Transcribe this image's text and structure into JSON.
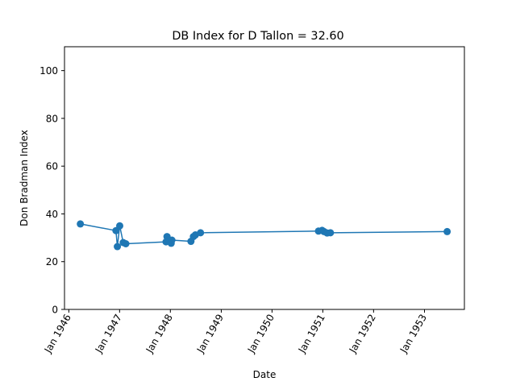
{
  "chart_data": {
    "type": "line",
    "title": "DB Index for D Tallon = 32.60",
    "xlabel": "Date",
    "ylabel": "Don Bradman Index",
    "xlim": [
      "1945-12-01",
      "1953-10-15"
    ],
    "ylim": [
      0,
      110
    ],
    "x_ticks": [
      "1946-01-01",
      "1947-01-01",
      "1948-01-01",
      "1949-01-01",
      "1950-01-01",
      "1951-01-01",
      "1952-01-01",
      "1953-01-01"
    ],
    "x_tick_labels": [
      "Jan 1946",
      "Jan 1947",
      "Jan 1948",
      "Jan 1949",
      "Jan 1950",
      "Jan 1951",
      "Jan 1952",
      "Jan 1953"
    ],
    "y_ticks": [
      0,
      20,
      40,
      60,
      80,
      100
    ],
    "y_tick_labels": [
      "0",
      "20",
      "40",
      "60",
      "80",
      "100"
    ],
    "grid": false,
    "legend": "none",
    "series_color": "#1f77b4",
    "series": [
      {
        "x": [
          "1946-03-25",
          "1946-12-06",
          "1946-12-16",
          "1947-01-02",
          "1947-01-27",
          "1947-02-15",
          "1947-12-01",
          "1947-12-08",
          "1947-12-24",
          "1948-01-07",
          "1948-01-12",
          "1948-05-28",
          "1948-06-15",
          "1948-06-29",
          "1948-08-05",
          "1950-12-01",
          "1950-12-27",
          "1951-01-10",
          "1951-02-01",
          "1951-02-25",
          "1953-06-13"
        ],
        "y": [
          35.8,
          33.0,
          26.3,
          35.0,
          28.0,
          27.5,
          28.3,
          30.5,
          29.0,
          27.7,
          29.0,
          28.5,
          30.5,
          31.2,
          32.1,
          32.8,
          33.1,
          32.6,
          32.0,
          32.1,
          32.6
        ]
      }
    ]
  }
}
